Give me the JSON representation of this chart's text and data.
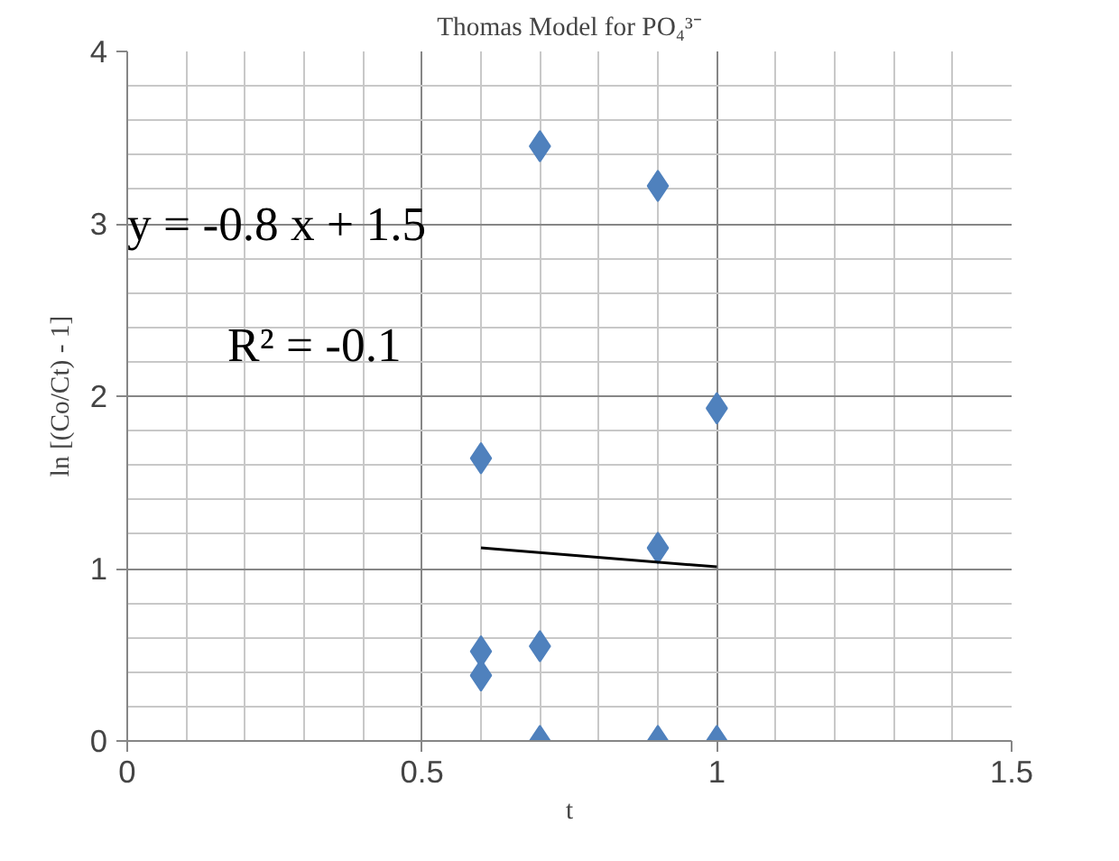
{
  "chart_data": {
    "type": "scatter",
    "title": "Thomas Model for PO₄³⁻",
    "xlabel": "t",
    "ylabel": "ln [(Co/Ct) - 1]",
    "annotations": [
      "y =  -0.8 x + 1.5",
      "R² =  -0.1"
    ],
    "series": [
      {
        "color": "#4f81bd",
        "marker": "diamond",
        "x": [
          0.6,
          0.6,
          0.6,
          0.7,
          0.7,
          0.7,
          0.9,
          0.9,
          0.9,
          1.0,
          1.0
        ],
        "values": [
          1.64,
          0.52,
          0.38,
          3.45,
          0.55,
          0,
          3.22,
          1.12,
          0,
          1.93,
          0
        ]
      },
      {
        "type": "line",
        "color": "#000000",
        "line_style": "solid",
        "x": [
          0.6,
          1.0
        ],
        "values": [
          1.12,
          1.01
        ]
      }
    ],
    "xlim": [
      0,
      1.5
    ],
    "xticks": [
      0,
      0.5,
      1,
      1.5
    ],
    "ylim": [
      0,
      4
    ],
    "yticks": [
      0,
      1,
      2,
      3,
      4
    ],
    "grid": true
  }
}
